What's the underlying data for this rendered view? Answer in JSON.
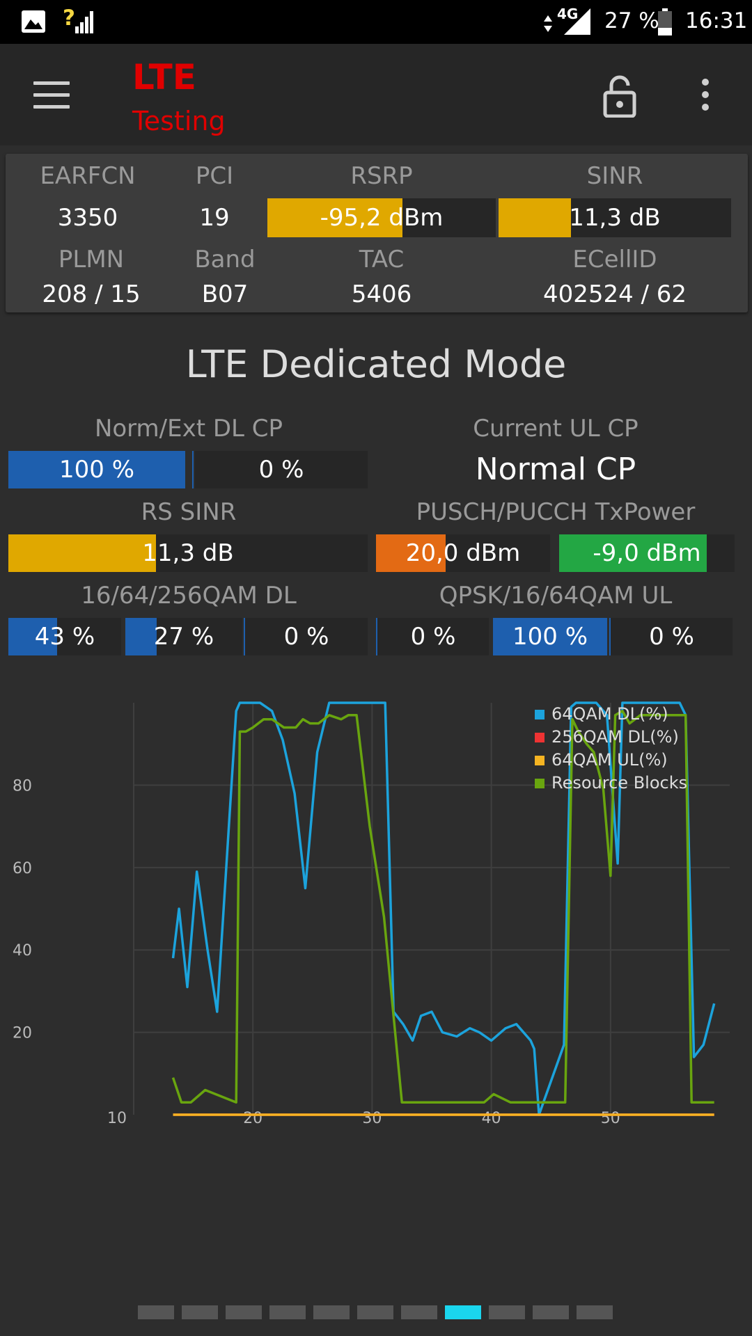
{
  "status_bar": {
    "network_type": "4G",
    "battery": "27 %",
    "time": "16:31",
    "unknown_signal": "?"
  },
  "app_bar": {
    "title": "LTE",
    "subtitle": "Testing"
  },
  "cell_info": {
    "earfcn": {
      "label": "EARFCN",
      "value": "3350"
    },
    "pci": {
      "label": "PCI",
      "value": "19"
    },
    "rsrp": {
      "label": "RSRP",
      "value": "-95,2 dBm",
      "level": 0.59
    },
    "sinr": {
      "label": "SINR",
      "value": "11,3 dB",
      "level": 0.31
    },
    "plmn": {
      "label": "PLMN",
      "value": "208 / 15"
    },
    "band": {
      "label": "Band",
      "value": "B07"
    },
    "tac": {
      "label": "TAC",
      "value": "5406"
    },
    "ecellid": {
      "label": "ECellID",
      "value": "402524 / 62"
    }
  },
  "section_title": "LTE Dedicated Mode",
  "dl_cp": {
    "label": "Norm/Ext DL CP",
    "normal": "100 %",
    "extended": "0 %",
    "normal_level": 1.0
  },
  "ul_cp": {
    "label": "Current UL CP",
    "value": "Normal CP"
  },
  "rs_sinr": {
    "label": "RS SINR",
    "value": "11,3 dB",
    "level": 0.41
  },
  "tx_power": {
    "label": "PUSCH/PUCCH TxPower",
    "pusch": "20,0 dBm",
    "pucch": "-9,0 dBm",
    "pusch_level": 0.4,
    "pucch_level": 0.84
  },
  "qam_dl": {
    "label": "16/64/256QAM DL",
    "qam16": "43 %",
    "qam64": "27 %",
    "qam256": "0 %",
    "levels": [
      0.43,
      0.27,
      0.0
    ]
  },
  "qam_ul": {
    "label": "QPSK/16/64QAM UL",
    "qpsk": "0 %",
    "qam16": "100 %",
    "qam64": "0 %",
    "levels": [
      0.0,
      1.0,
      0.0
    ]
  },
  "chart_data": {
    "type": "line",
    "title": "",
    "xlabel": "",
    "ylabel": "",
    "xlim": [
      10,
      60
    ],
    "ylim": [
      0,
      100
    ],
    "x_ticks": [
      10,
      20,
      30,
      40,
      50
    ],
    "y_ticks": [
      20,
      40,
      60,
      80
    ],
    "grid": true,
    "legend_position": "top-right",
    "series": [
      {
        "name": "64QAM DL(%)",
        "color": "#1ca3dc",
        "x": [
          13.3,
          13.8,
          14.5,
          15.3,
          16.2,
          17.0,
          18.6,
          18.9,
          19.5,
          20.6,
          21.6,
          22.5,
          23.5,
          24.4,
          25.4,
          26.4,
          27.0,
          28.3,
          29.9,
          31.1,
          31.8,
          32.6,
          33.4,
          34.1,
          35.0,
          35.9,
          37.1,
          38.2,
          39.0,
          40.0,
          41.2,
          42.1,
          43.3,
          43.6,
          44.0,
          46.1,
          46.7,
          47.1,
          47.8,
          48.4,
          48.8,
          49.7,
          50.6,
          51.0,
          51.6,
          52.5,
          53.3,
          54.1,
          54.9,
          55.8,
          56.3,
          57.0,
          57.8,
          58.7
        ],
        "y": [
          38,
          50,
          31,
          59,
          40,
          25,
          98,
          100,
          100,
          100,
          98,
          91,
          78,
          55,
          88,
          100,
          100,
          100,
          100,
          100,
          25,
          22,
          18,
          24,
          25,
          20,
          19,
          21,
          20,
          18,
          21,
          22,
          18,
          16,
          0,
          17,
          99,
          100,
          100,
          100,
          100,
          97,
          61,
          100,
          100,
          100,
          100,
          100,
          100,
          100,
          97,
          14,
          17,
          27
        ]
      },
      {
        "name": "256QAM DL(%)",
        "color": "#ee3333",
        "x": [
          13.3,
          58.7
        ],
        "y": [
          0,
          0
        ]
      },
      {
        "name": "64QAM UL(%)",
        "color": "#f5b422",
        "x": [
          13.3,
          58.7
        ],
        "y": [
          0,
          0
        ]
      },
      {
        "name": "Resource Blocks",
        "color": "#69a50f",
        "x": [
          13.3,
          14.0,
          14.8,
          16.0,
          18.6,
          18.9,
          19.4,
          20.0,
          20.9,
          21.6,
          22.6,
          23.6,
          24.2,
          24.8,
          25.5,
          26.4,
          27.4,
          28.0,
          28.7,
          29.8,
          31.0,
          32.5,
          35.0,
          39.4,
          40.2,
          41.6,
          43.2,
          45.7,
          46.2,
          46.8,
          47.3,
          48.0,
          48.6,
          49.4,
          50.0,
          50.4,
          51.0,
          51.6,
          52.5,
          53.4,
          54.4,
          55.1,
          55.9,
          56.3,
          56.8,
          58.7
        ],
        "y": [
          9,
          3,
          3,
          6,
          3,
          93,
          93,
          94,
          96,
          96,
          94,
          94,
          96,
          95,
          95,
          97,
          96,
          97,
          97,
          70,
          48,
          3,
          3,
          3,
          5,
          3,
          3,
          3,
          3,
          96,
          93,
          90,
          88,
          79,
          58,
          97,
          98,
          95,
          97,
          97,
          97,
          97,
          97,
          97,
          3,
          3
        ]
      }
    ]
  },
  "pager": {
    "pages": 11,
    "active": 7
  }
}
